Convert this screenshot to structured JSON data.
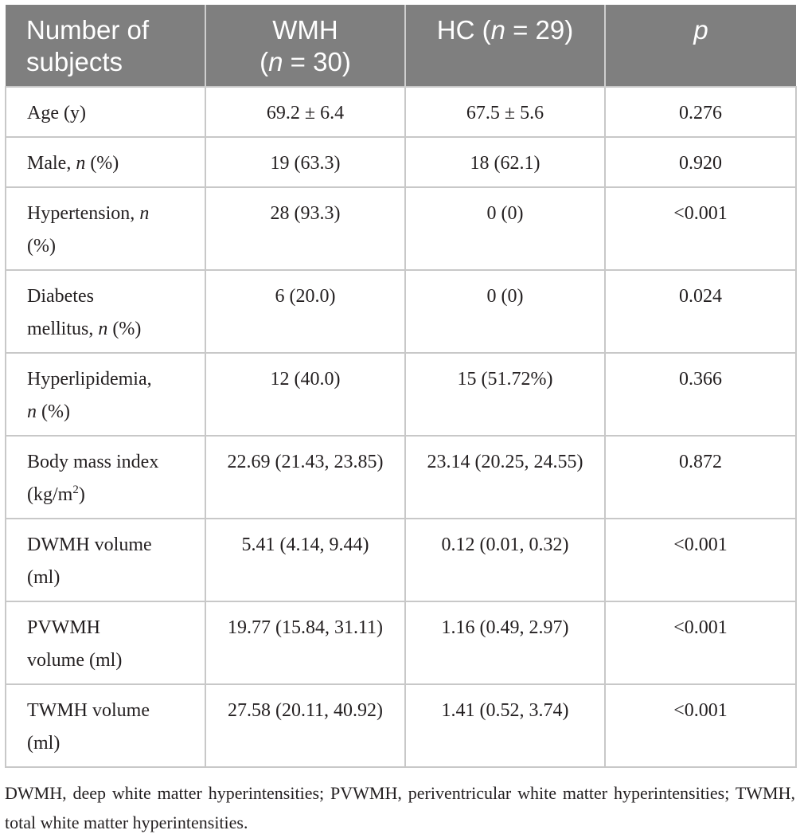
{
  "header": {
    "col1": "Number of subjects",
    "col2_line1": "WMH",
    "col2_line2": "(n = 30)",
    "col3": "HC (n = 29)",
    "col4": "p"
  },
  "rows": [
    {
      "label": "Age (y)",
      "wmh": "69.2 ± 6.4",
      "hc": "67.5 ± 5.6",
      "p": "0.276"
    },
    {
      "label": "Male, n (%)",
      "wmh": "19 (63.3)",
      "hc": "18 (62.1)",
      "p": "0.920"
    },
    {
      "label": "Hypertension, n (%)",
      "wmh": "28 (93.3)",
      "hc": "0 (0)",
      "p": "<0.001"
    },
    {
      "label": "Diabetes mellitus, n (%)",
      "wmh": "6 (20.0)",
      "hc": "0 (0)",
      "p": "0.024"
    },
    {
      "label": "Hyperlipidemia, n (%)",
      "wmh": "12 (40.0)",
      "hc": "15 (51.72%)",
      "p": "0.366"
    },
    {
      "label": "Body mass index (kg/m2)",
      "wmh": "22.69 (21.43, 23.85)",
      "hc": "23.14 (20.25, 24.55)",
      "p": "0.872"
    },
    {
      "label": "DWMH volume (ml)",
      "wmh": "5.41 (4.14, 9.44)",
      "hc": "0.12 (0.01, 0.32)",
      "p": "<0.001"
    },
    {
      "label": "PVWMH volume (ml)",
      "wmh": "19.77 (15.84, 31.11)",
      "hc": "1.16 (0.49, 2.97)",
      "p": "<0.001"
    },
    {
      "label": "TWMH volume (ml)",
      "wmh": "27.58 (20.11, 40.92)",
      "hc": "1.41 (0.52, 3.74)",
      "p": "<0.001"
    }
  ],
  "label_parts": {
    "male_pre": "Male, ",
    "n": "n",
    "pct": " (%)",
    "hyp_pre": "Hypertension, ",
    "dm_line1": "Diabetes",
    "dm_line2_pre": "mellitus, ",
    "hl_pre": "Hyperlipidemia,",
    "bmi_line1": "Body mass index",
    "bmi_unit_pre": "(kg/m",
    "bmi_sup": "2",
    "bmi_unit_post": ")",
    "dwmh_line1": "DWMH volume",
    "ml": "(ml)",
    "pvwmh_line1": "PVWMH",
    "pvwmh_line2": "volume (ml)",
    "twmh_line1": "TWMH volume"
  },
  "header_parts": {
    "wmh_pre": "(",
    "n": "n",
    "wmh_post": " = 30)",
    "hc_pre": "HC (",
    "hc_post": " = 29)"
  },
  "footnote": "DWMH, deep white matter hyperintensities; PVWMH, periventricular white matter hyperintensities; TWMH, total white matter hyperintensities."
}
